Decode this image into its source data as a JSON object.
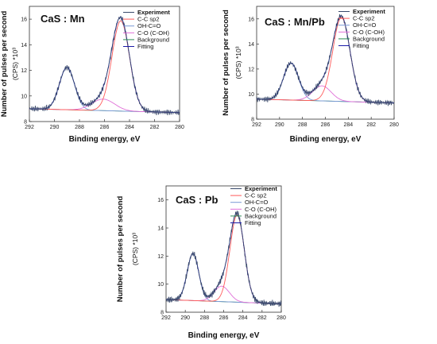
{
  "colors": {
    "experiment": "#3a4a6b",
    "cc_sp2": "#ff5a5a",
    "oh_c_o": "#7a9ad6",
    "c_o_coh": "#e070d8",
    "background": "#2e8b57",
    "fitting": "#1a1aa8"
  },
  "chart_data": [
    {
      "type": "line",
      "title": "CaS : Mn",
      "xlabel": "Binding energy, eV",
      "ylabel": "Number of pulses per second",
      "yunit": "(CPS) *10³",
      "xlim": [
        292,
        280
      ],
      "ylim": [
        8,
        17
      ],
      "xticks": [
        "292",
        "290",
        "288",
        "286",
        "284",
        "282",
        "280"
      ],
      "yticks": [
        "8",
        "10",
        "12",
        "14",
        "16"
      ],
      "legend_position": "top-right",
      "background_line": {
        "x": [
          292,
          280
        ],
        "y": [
          9.0,
          8.7
        ]
      },
      "peaks": {
        "C-C sp2": {
          "center": 284.7,
          "height": 7.05,
          "width": 0.7
        },
        "OH-C=O": {
          "center": 289.0,
          "height": 3.3,
          "width": 0.6
        },
        "C-O (C-OH)": {
          "center": 286.1,
          "height": 0.9,
          "width": 0.9
        }
      },
      "series": [
        {
          "name": "Experiment",
          "style": "experiment"
        },
        {
          "name": "C-C sp2",
          "style": "cc_sp2"
        },
        {
          "name": "OH-C=O",
          "style": "oh_c_o"
        },
        {
          "name": "C-O (C-OH)",
          "style": "c_o_coh"
        },
        {
          "name": "Background",
          "style": "background"
        },
        {
          "name": "Fitting",
          "style": "fitting"
        }
      ]
    },
    {
      "type": "line",
      "title": "CaS : Mn/Pb",
      "xlabel": "Binding energy, eV",
      "ylabel": "Number of pulses per second",
      "yunit": "(CPS) *10³",
      "xlim": [
        292,
        280
      ],
      "ylim": [
        8,
        17
      ],
      "xticks": [
        "292",
        "290",
        "288",
        "286",
        "284",
        "282",
        "280"
      ],
      "yticks": [
        "8",
        "10",
        "12",
        "14",
        "16"
      ],
      "legend_position": "top-right",
      "background_line": {
        "x": [
          292,
          280
        ],
        "y": [
          9.6,
          9.3
        ]
      },
      "peaks": {
        "C-C sp2": {
          "center": 284.6,
          "height": 6.7,
          "width": 0.75
        },
        "OH-C=O": {
          "center": 289.0,
          "height": 2.95,
          "width": 0.65
        },
        "C-O (C-OH)": {
          "center": 286.3,
          "height": 1.2,
          "width": 0.8
        }
      },
      "series": [
        {
          "name": "Experiment",
          "style": "experiment"
        },
        {
          "name": "C-C sp2",
          "style": "cc_sp2"
        },
        {
          "name": "OH-C=O",
          "style": "oh_c_o"
        },
        {
          "name": "C-O (C-OH)",
          "style": "c_o_coh"
        },
        {
          "name": "Background",
          "style": "background"
        },
        {
          "name": "Fitting",
          "style": "fitting"
        }
      ]
    },
    {
      "type": "line",
      "title": "CaS : Pb",
      "xlabel": "Binding energy, eV",
      "ylabel": "Number of pulses per second",
      "yunit": "(CPS) *10³",
      "xlim": [
        292,
        280
      ],
      "ylim": [
        8,
        17
      ],
      "xticks": [
        "292",
        "290",
        "288",
        "286",
        "284",
        "282",
        "280"
      ],
      "yticks": [
        "8",
        "10",
        "12",
        "14",
        "16"
      ],
      "legend_position": "top-right",
      "background_line": {
        "x": [
          292,
          280
        ],
        "y": [
          8.9,
          8.6
        ]
      },
      "peaks": {
        "C-C sp2": {
          "center": 284.6,
          "height": 6.2,
          "width": 0.75
        },
        "OH-C=O": {
          "center": 289.2,
          "height": 3.35,
          "width": 0.6
        },
        "C-O (C-OH)": {
          "center": 286.2,
          "height": 1.1,
          "width": 0.8
        }
      },
      "series": [
        {
          "name": "Experiment",
          "style": "experiment"
        },
        {
          "name": "C-C sp2",
          "style": "cc_sp2"
        },
        {
          "name": "OH-C=O",
          "style": "oh_c_o"
        },
        {
          "name": "C-O (C-OH)",
          "style": "c_o_coh"
        },
        {
          "name": "Background",
          "style": "background"
        },
        {
          "name": "Fitting",
          "style": "fitting"
        }
      ]
    }
  ]
}
